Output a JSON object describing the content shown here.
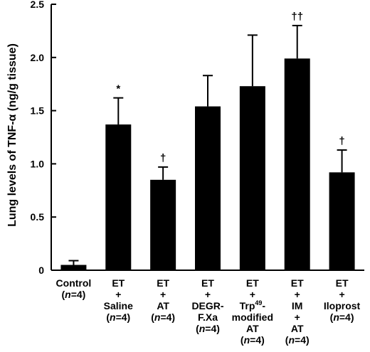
{
  "chart_data": {
    "type": "bar",
    "ylabel": "Lung levels of TNF-α (ng/g tissue)",
    "ylim": [
      0,
      2.5
    ],
    "yticks": [
      "0",
      "0.5",
      "1.0",
      "1.5",
      "2.0",
      "2.5"
    ],
    "grid": false,
    "bar_color": "#000000",
    "categories": [
      {
        "lines": [
          "Control",
          "(n=4)"
        ],
        "value": 0.05,
        "error": 0.04,
        "mark": ""
      },
      {
        "lines": [
          "ET",
          "+",
          "Saline",
          "(n=4)"
        ],
        "value": 1.37,
        "error": 0.25,
        "mark": "*"
      },
      {
        "lines": [
          "ET",
          "+",
          "AT",
          "(n=4)"
        ],
        "value": 0.85,
        "error": 0.12,
        "mark": "†"
      },
      {
        "lines": [
          "ET",
          "+",
          "DEGR-",
          "F.Xa",
          "(n=4)"
        ],
        "value": 1.54,
        "error": 0.29,
        "mark": ""
      },
      {
        "lines": [
          "ET",
          "+",
          "Trp49-",
          "modified",
          "AT",
          "(n=4)"
        ],
        "value": 1.73,
        "error": 0.48,
        "mark": ""
      },
      {
        "lines": [
          "ET",
          "+",
          "IM",
          "+",
          "AT",
          "(n=4)"
        ],
        "value": 1.99,
        "error": 0.31,
        "mark": "††"
      },
      {
        "lines": [
          "ET",
          "+",
          "Iloprost",
          "(n=4)"
        ],
        "value": 0.92,
        "error": 0.21,
        "mark": "†"
      }
    ]
  }
}
